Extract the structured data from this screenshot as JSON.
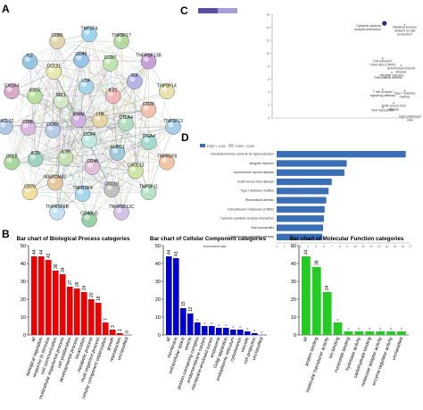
{
  "panels": {
    "A": "A",
    "B": "B",
    "C": "C",
    "D": "D"
  },
  "network": {
    "nodes": [
      {
        "label": "TNFSF4",
        "color": "#9fd4ef"
      },
      {
        "label": "TNFSF17",
        "color": "#b7d9a0"
      },
      {
        "label": "TNFRSF13B",
        "color": "#c8a0d8"
      },
      {
        "label": "TNFSF14",
        "color": "#e9e3b0"
      },
      {
        "label": "TNFSF13",
        "color": "#a8cde8"
      },
      {
        "label": "TNFRSF8",
        "color": "#f0c6a6"
      },
      {
        "label": "TNFSF11",
        "color": "#b9e3c8"
      },
      {
        "label": "TNFRSF13C",
        "color": "#d2c2e8"
      },
      {
        "label": "CD40LG",
        "color": "#9ad0a8"
      },
      {
        "label": "TNFRSF6B",
        "color": "#c4e2f1"
      },
      {
        "label": "CD70",
        "color": "#f1e0a0"
      },
      {
        "label": "CCL2",
        "color": "#a9d89d"
      },
      {
        "label": "CXCL12",
        "color": "#b0c8e8"
      },
      {
        "label": "CXCR4",
        "color": "#d9a9c8"
      },
      {
        "label": "IL2",
        "color": "#95c7e0"
      },
      {
        "label": "CD80",
        "color": "#e0d6b0"
      },
      {
        "label": "CCR7",
        "color": "#bfe5b1"
      },
      {
        "label": "IL6",
        "color": "#b3b3e6"
      },
      {
        "label": "CD28",
        "color": "#f2c2b0"
      },
      {
        "label": "ITGA4",
        "color": "#a3dbd0"
      },
      {
        "label": "CXCL13",
        "color": "#d0e6a6"
      },
      {
        "label": "CCL19",
        "color": "#c0c0c0"
      },
      {
        "label": "TNFRSF4",
        "color": "#a8d8f0"
      },
      {
        "label": "MADCAM1",
        "color": "#e6c8a0"
      },
      {
        "label": "IL15",
        "color": "#9fd0c0"
      },
      {
        "label": "CD86",
        "color": "#d8b8e0"
      },
      {
        "label": "ICOS",
        "color": "#b8e0a0"
      },
      {
        "label": "CCL21",
        "color": "#e8e8b0"
      },
      {
        "label": "CD40",
        "color": "#98c4e8"
      },
      {
        "label": "IL21",
        "color": "#f0b8b8"
      },
      {
        "label": "CTLA4",
        "color": "#b0dcc0"
      },
      {
        "label": "KLRC1",
        "color": "#a0c8d8"
      },
      {
        "label": "CD48",
        "color": "#e0c0d8"
      },
      {
        "label": "IL7R",
        "color": "#c6e0b0"
      },
      {
        "label": "CCR9",
        "color": "#b6cbe6"
      },
      {
        "label": "SELL",
        "color": "#d6e6c6"
      },
      {
        "label": "LTA",
        "color": "#a6d6e6"
      },
      {
        "label": "LTB",
        "color": "#e6d6a6"
      },
      {
        "label": "CCR4",
        "color": "#c0e8e0"
      },
      {
        "label": "IGHM",
        "color": "#d0b0e0"
      }
    ]
  },
  "chart_data": [
    {
      "type": "scatter",
      "panel": "C",
      "xlabel": "",
      "ylabel": "",
      "x_ticks": [
        "0",
        "1",
        "2",
        "3",
        "4",
        "5",
        "6",
        "7",
        "8"
      ],
      "y_ticks": [
        "0",
        "2",
        "4",
        "6",
        "8",
        "10",
        "12",
        "14",
        "16"
      ],
      "xlim": [
        0,
        8
      ],
      "ylim": [
        0,
        16
      ],
      "colorbar_ticks": [
        "",
        ""
      ],
      "points": [
        {
          "x": 6.1,
          "y": 14.6,
          "label": "Cytokine-cytokine receptor interaction",
          "highlight": true
        },
        {
          "x": 7.2,
          "y": 14.4,
          "label": "Intestinal immune network for IgA production",
          "highlight": false
        },
        {
          "x": 6.0,
          "y": 9.2,
          "label": "Cell adhesion molecules (CAMs)",
          "highlight": false
        },
        {
          "x": 7.0,
          "y": 8.1,
          "label": "Autoimmune thyroid disease",
          "highlight": false
        },
        {
          "x": 6.5,
          "y": 7.0,
          "label": "Allograft rejection",
          "highlight": false
        },
        {
          "x": 6.3,
          "y": 6.6,
          "label": "Rheumatoid arthritis",
          "highlight": false
        },
        {
          "x": 6.0,
          "y": 4.4,
          "label": "T cell receptor signaling pathway",
          "highlight": false
        },
        {
          "x": 7.2,
          "y": 4.2,
          "label": "Type I diabetes mellitus",
          "highlight": false
        },
        {
          "x": 6.6,
          "y": 2.3,
          "label": "Graft-versus-host disease",
          "highlight": false
        },
        {
          "x": 6.0,
          "y": 1.6,
          "label": "Viral myocarditis",
          "highlight": false
        },
        {
          "x": 7.5,
          "y": 0.6,
          "label": "log2 enrichment ratio",
          "highlight": false
        }
      ]
    },
    {
      "type": "bar",
      "panel": "D",
      "orientation": "horizontal",
      "legend": [
        "FDR < 0.05",
        "FDR > 0.05"
      ],
      "series_colors": [
        "#3a6fb5",
        "#cccccc"
      ],
      "xlabel": "Enrichment ratio",
      "x_ticks": [
        "0",
        "1",
        "2",
        "3",
        "4",
        "5",
        "6",
        "7",
        "8",
        "9",
        "10",
        "11",
        "12",
        "13",
        "14",
        "15",
        "16",
        "17"
      ],
      "xlim": [
        0,
        17
      ],
      "categories": [
        "Intestinal immune network for IgA production",
        "Allograft rejection",
        "Autoimmune thyroid disease",
        "Graft-versus-host disease",
        "Type I diabetes mellitus",
        "Rheumatoid arthritis",
        "Cell adhesion molecules (CAMs)",
        "Cytokine-cytokine receptor interaction",
        "Viral myocarditis",
        "T cell receptor signaling pathway"
      ],
      "values": [
        16.4,
        8.9,
        8.6,
        7.0,
        6.6,
        6.3,
        6.1,
        6.0,
        5.9,
        5.8
      ]
    },
    {
      "type": "bar",
      "panel": "B1",
      "title": "Bar chart of Biological Process categories",
      "color": "#ee0000",
      "ylim": [
        0,
        50
      ],
      "y_ticks": [
        "0",
        "10",
        "20",
        "30",
        "40",
        "50"
      ],
      "categories": [
        "all",
        "biological regulation",
        "response to stimulus",
        "cell communication",
        "multicellular organismal process",
        "cell proliferation",
        "developmental process",
        "localization",
        "metabolic process",
        "multi-organism process",
        "cellular component organization",
        "growth",
        "reproduction",
        "unclassified"
      ],
      "values": [
        44,
        44,
        42,
        36,
        34,
        27,
        26,
        24,
        20,
        18,
        7,
        3,
        1,
        0
      ],
      "value_labels": [
        "44",
        "44",
        "42",
        "36",
        "34",
        "27",
        "26",
        "24",
        "20",
        "18",
        "7",
        "3",
        "1",
        "0"
      ]
    },
    {
      "type": "bar",
      "panel": "B2",
      "title": "Bar chart of Cellular Component categories",
      "color": "#0000cc",
      "ylim": [
        0,
        50
      ],
      "y_ticks": [
        "0",
        "10",
        "20",
        "30",
        "40",
        "50"
      ],
      "categories": [
        "all",
        "membrane",
        "extracellular space",
        "vesicle",
        "protein-containing complex",
        "endomembrane system",
        "membrane-enclosed lumen",
        "endosome",
        "Golgi apparatus",
        "endoplasmic reticulum",
        "cytoskeleton",
        "vacuole",
        "cell projection",
        "unclassified"
      ],
      "values": [
        44,
        43,
        15,
        12,
        7,
        5,
        5,
        4,
        4,
        3,
        3,
        2,
        1,
        0
      ],
      "value_labels": [
        "44",
        "43",
        "15",
        "12",
        "",
        "",
        "",
        "",
        "",
        "",
        "",
        "",
        "",
        ""
      ]
    },
    {
      "type": "bar",
      "panel": "B3",
      "title": "Bar chart of Molecular Function categories",
      "color": "#22cc22",
      "ylim": [
        0,
        50
      ],
      "y_ticks": [
        "0",
        "10",
        "20",
        "30",
        "40",
        "50"
      ],
      "categories": [
        "all",
        "protein binding",
        "molecular transducer activity",
        "ion binding",
        "nucleotide binding",
        "hydrolase activity",
        "carbohydrate binding",
        "molecular adaptor activity",
        "enzyme regulator activity",
        "unclassified"
      ],
      "values": [
        44,
        38,
        24,
        7,
        2,
        2,
        2,
        2,
        2,
        2
      ],
      "value_labels": [
        "44",
        "38",
        "24",
        "",
        "",
        "",
        "",
        "",
        "",
        ""
      ]
    }
  ]
}
